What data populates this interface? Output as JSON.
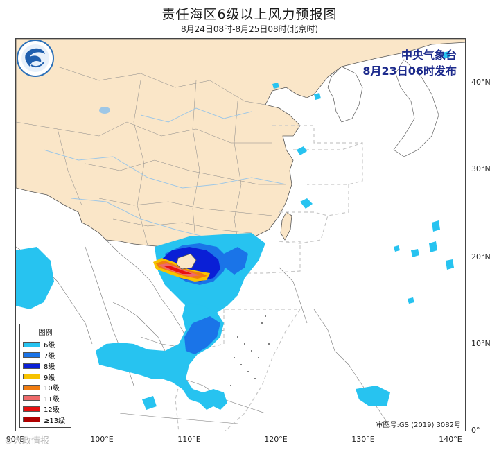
{
  "title": "责任海区6级以上风力预报图",
  "subtitle": "8月24日08时-8月25日08时(北京时)",
  "issuer": {
    "line1": "中央气象台",
    "line2": "8月23日06时发布"
  },
  "review_number": "审图号:GS (2019) 3082号",
  "watermark": "©大政情报",
  "legend": {
    "title": "图例",
    "items": [
      {
        "label": "6级",
        "color": "#27c3f0"
      },
      {
        "label": "7级",
        "color": "#1a74e8"
      },
      {
        "label": "8级",
        "color": "#0a1fd6"
      },
      {
        "label": "9级",
        "color": "#f6c200"
      },
      {
        "label": "10级",
        "color": "#f07c10"
      },
      {
        "label": "11级",
        "color": "#ee6a6a"
      },
      {
        "label": "12级",
        "color": "#e81010"
      },
      {
        "label": "≥13级",
        "color": "#b00000"
      }
    ]
  },
  "lat_labels": [
    "40°N",
    "30°N",
    "20°N",
    "10°N",
    "0°"
  ],
  "lon_labels": [
    "90°E",
    "100°E",
    "110°E",
    "120°E",
    "130°E",
    "140°E"
  ],
  "colors": {
    "land": "#fae6c8",
    "foreign_land": "#ffffff",
    "water": "#9ec7e6",
    "border": "#888888",
    "coast": "#555555",
    "dashed": "#c8c8c8"
  },
  "icons": {
    "logo": "cma-logo-icon"
  }
}
